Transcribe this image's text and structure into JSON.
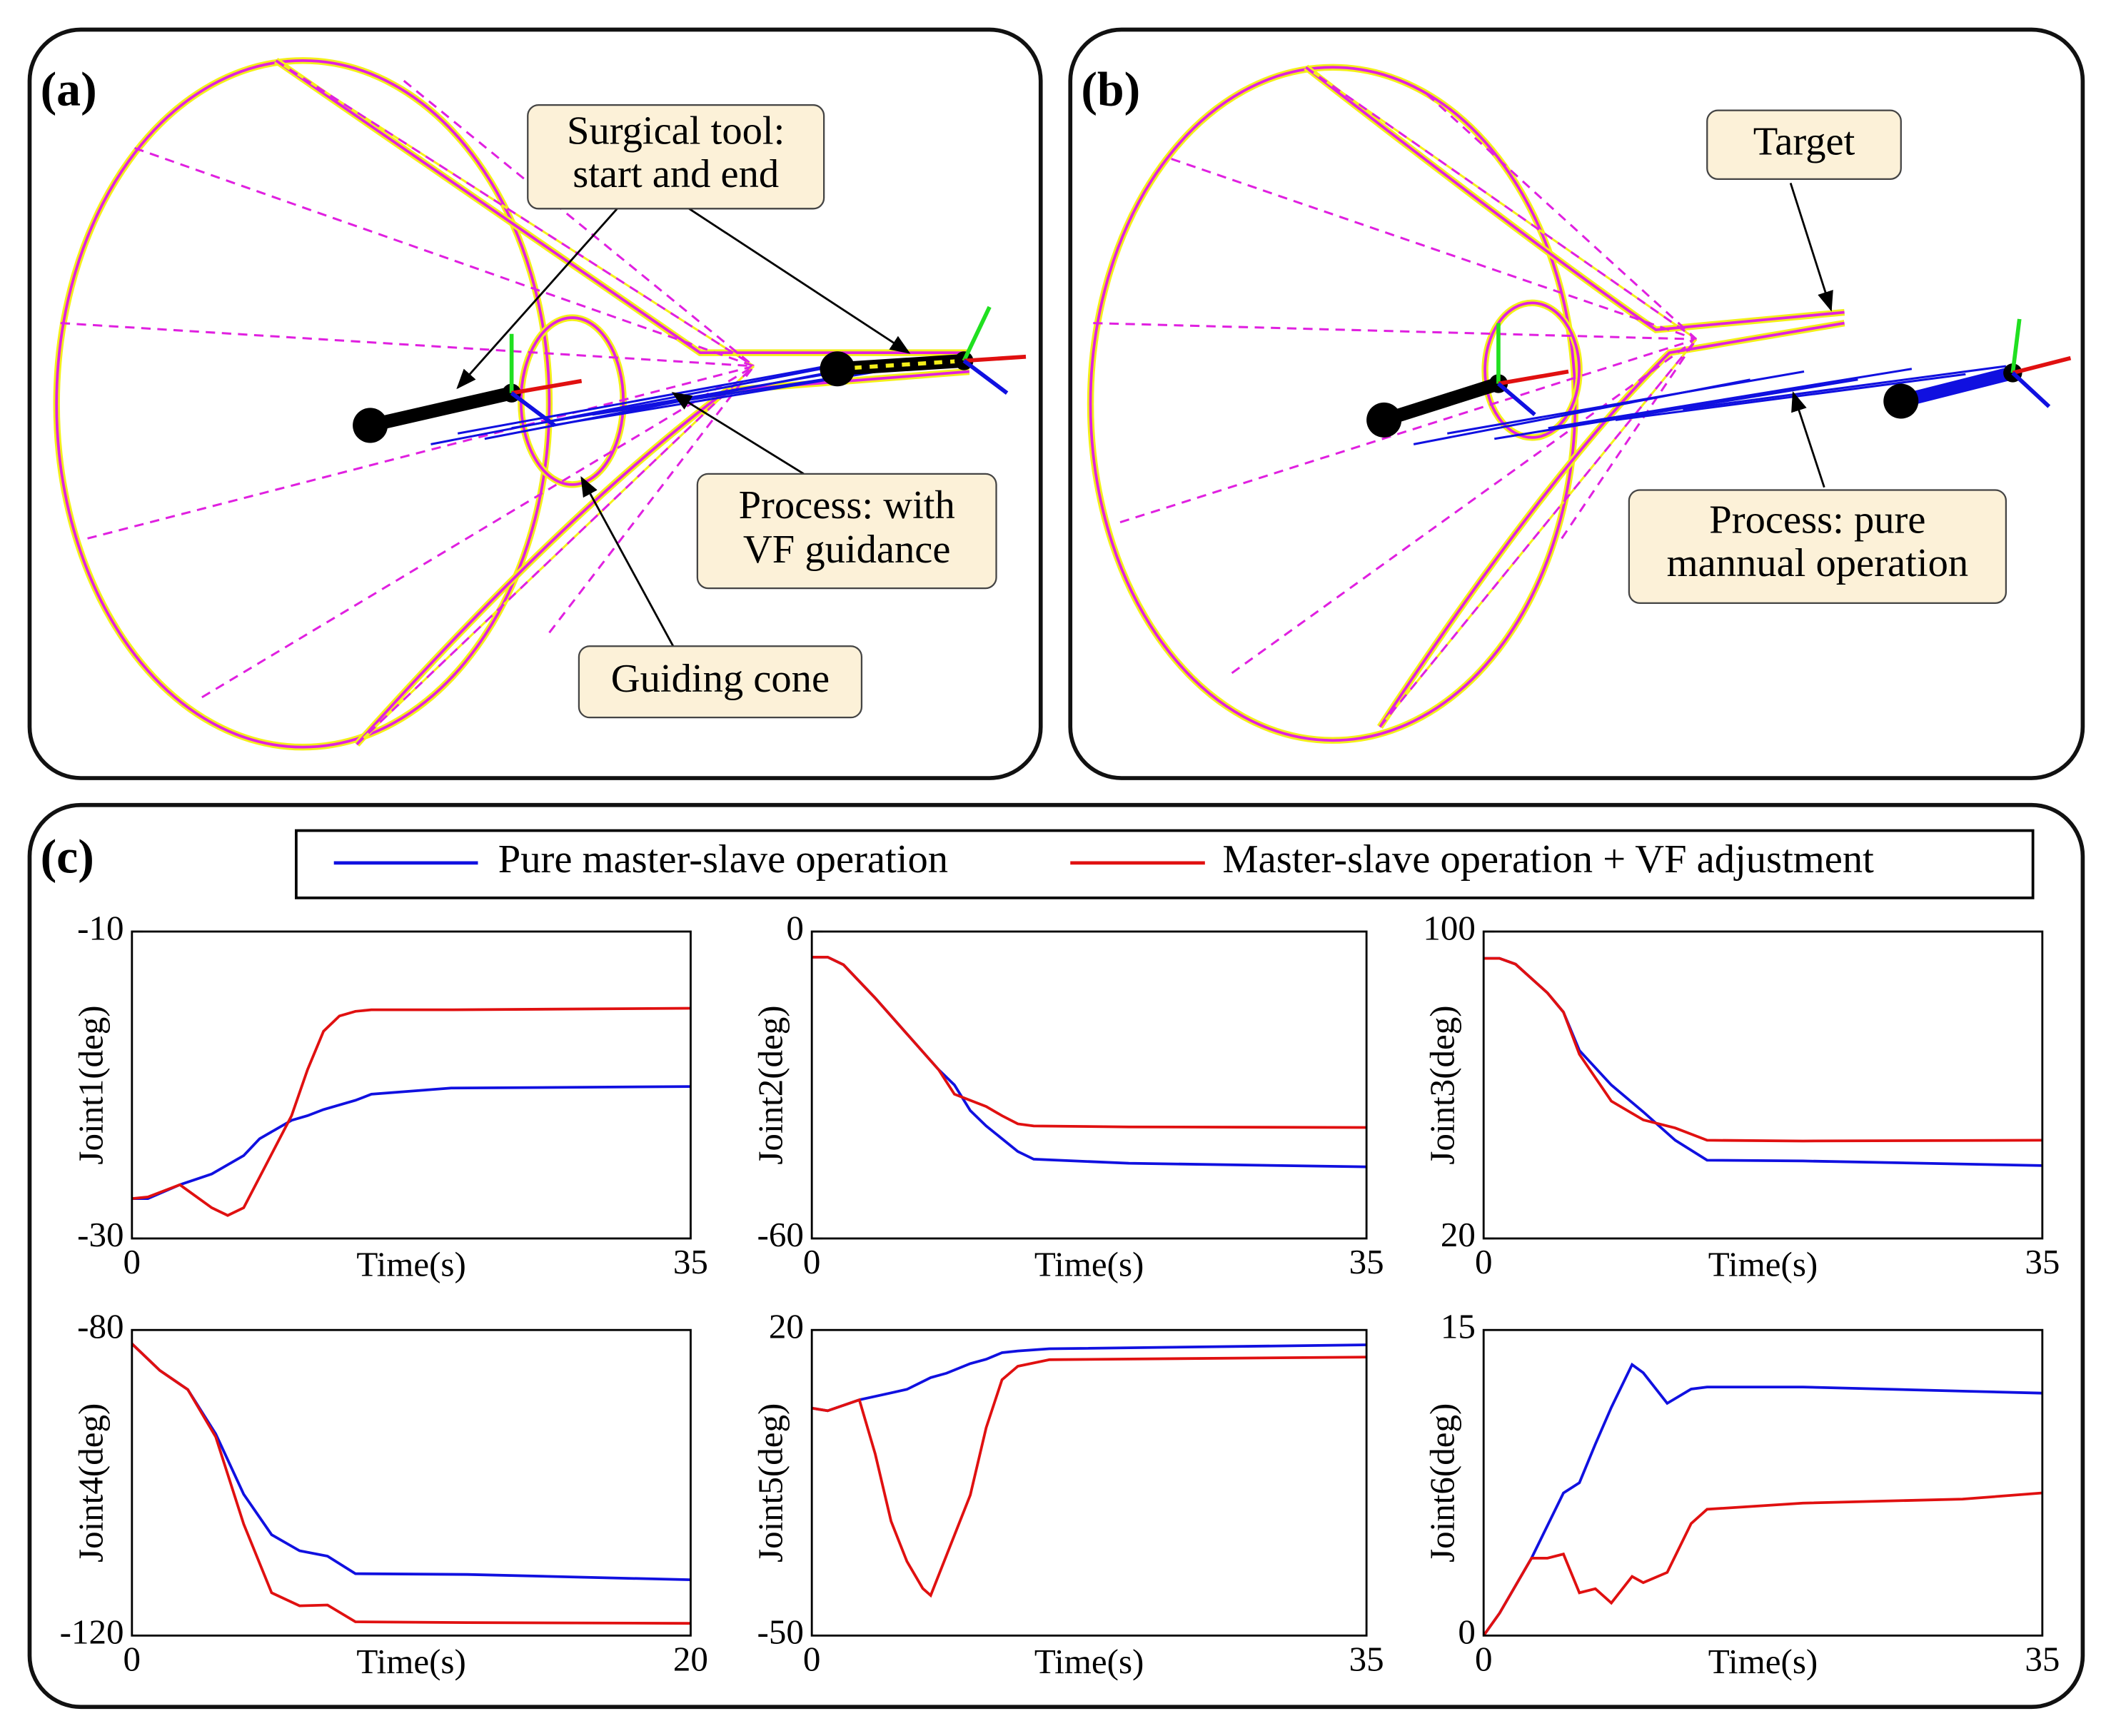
{
  "panels": {
    "a": {
      "label": "(a)",
      "tool": [
        "Surgical tool:",
        "start and end"
      ],
      "process": [
        "Process: with",
        "VF guidance"
      ],
      "cone": "Guiding cone"
    },
    "b": {
      "label": "(b)",
      "target": "Target",
      "process": [
        "Process: pure",
        "mannual operation"
      ]
    },
    "c": {
      "label": "(c)"
    }
  },
  "legend": [
    {
      "name": "Pure master-slave operation",
      "color": "#1010e0"
    },
    {
      "name": "Master-slave operation + VF adjustment",
      "color": "#e01010"
    }
  ],
  "chart_data": [
    {
      "type": "line",
      "x_label": "Time(s)",
      "y_label": "Joint1(deg)",
      "xlim": [
        0,
        35
      ],
      "xticks": [
        0,
        35
      ],
      "ylim": [
        -30,
        -10
      ],
      "yticks": [
        -30,
        -10
      ],
      "x": [
        0,
        1,
        3,
        5,
        6,
        7,
        8,
        9,
        10,
        11,
        12,
        13,
        14,
        15,
        20,
        35
      ],
      "series": [
        {
          "color": "#1010e0",
          "values": [
            -27.4,
            -27.4,
            -26.5,
            -25.8,
            -25.2,
            -24.6,
            -23.5,
            -22.9,
            -22.3,
            -22,
            -21.6,
            -21.3,
            -21,
            -20.6,
            -20.2,
            -20.1
          ]
        },
        {
          "color": "#e01010",
          "values": [
            -27.4,
            -27.3,
            -26.5,
            -28,
            -28.5,
            -28,
            -26,
            -24,
            -22,
            -19,
            -16.5,
            -15.5,
            -15.2,
            -15.1,
            -15.1,
            -15
          ]
        }
      ]
    },
    {
      "type": "line",
      "x_label": "Time(s)",
      "y_label": "Joint2(deg)",
      "xlim": [
        0,
        35
      ],
      "xticks": [
        0,
        35
      ],
      "ylim": [
        -60,
        0
      ],
      "yticks": [
        -60,
        0
      ],
      "x": [
        0,
        1,
        2,
        4,
        6,
        8,
        9,
        10,
        11,
        12,
        13,
        14,
        20,
        35
      ],
      "series": [
        {
          "color": "#1010e0",
          "values": [
            -5,
            -5,
            -6.5,
            -13,
            -20,
            -27,
            -30,
            -35,
            -38,
            -40.5,
            -43,
            -44.5,
            -45.3,
            -46
          ]
        },
        {
          "color": "#e01010",
          "values": [
            -5,
            -5,
            -6.5,
            -13,
            -20,
            -27,
            -31.8,
            -33,
            -34.2,
            -36,
            -37.6,
            -38,
            -38.2,
            -38.3
          ]
        }
      ]
    },
    {
      "type": "line",
      "x_label": "Time(s)",
      "y_label": "Joint3(deg)",
      "xlim": [
        0,
        35
      ],
      "xticks": [
        0,
        35
      ],
      "ylim": [
        20,
        100
      ],
      "yticks": [
        20,
        100
      ],
      "x": [
        0,
        1,
        2,
        4,
        5,
        6,
        8,
        10,
        12,
        14,
        20,
        35
      ],
      "series": [
        {
          "color": "#1010e0",
          "values": [
            93,
            93,
            91.5,
            84,
            79,
            69,
            60,
            53,
            45.6,
            40.4,
            40.2,
            39
          ]
        },
        {
          "color": "#e01010",
          "values": [
            93,
            93,
            91.5,
            84,
            79,
            68,
            55.8,
            50.9,
            48.8,
            45.6,
            45.4,
            45.6
          ]
        }
      ]
    },
    {
      "type": "line",
      "x_label": "Time(s)",
      "y_label": "Joint4(deg)",
      "xlim": [
        0,
        20
      ],
      "xticks": [
        0,
        20
      ],
      "ylim": [
        -120,
        -80
      ],
      "yticks": [
        -120,
        -80
      ],
      "x": [
        0,
        1,
        2,
        3,
        4,
        5,
        6,
        7,
        8,
        12,
        20
      ],
      "series": [
        {
          "color": "#1010e0",
          "values": [
            -81.8,
            -85.3,
            -87.8,
            -93.6,
            -101.5,
            -106.8,
            -108.9,
            -109.6,
            -111.9,
            -112,
            -112.7
          ]
        },
        {
          "color": "#e01010",
          "values": [
            -81.8,
            -85.3,
            -87.8,
            -94,
            -105.4,
            -114.4,
            -116.1,
            -116,
            -118.2,
            -118.3,
            -118.4
          ]
        }
      ]
    },
    {
      "type": "line",
      "x_label": "Time(s)",
      "y_label": "Joint5(deg)",
      "xlim": [
        0,
        35
      ],
      "xticks": [
        0,
        35
      ],
      "ylim": [
        -50,
        20
      ],
      "yticks": [
        -50,
        20
      ],
      "x": [
        0,
        1,
        3,
        4,
        5,
        6,
        7,
        7.5,
        8.5,
        10,
        11,
        12,
        13,
        15,
        35
      ],
      "series": [
        {
          "color": "#1010e0",
          "values": [
            2.1,
            1.5,
            4,
            4.8,
            5.6,
            6.4,
            8.2,
            9.1,
            10.1,
            12.3,
            13.3,
            14.8,
            15.2,
            15.7,
            16.6
          ]
        },
        {
          "color": "#e01010",
          "values": [
            2.1,
            1.5,
            4,
            -8.4,
            -23.8,
            -33,
            -39.2,
            -40.8,
            -31.6,
            -17.8,
            -2.4,
            8.6,
            11.7,
            13.2,
            13.8
          ]
        }
      ]
    },
    {
      "type": "line",
      "x_label": "Time(s)",
      "y_label": "Joint6(deg)",
      "xlim": [
        0,
        35
      ],
      "xticks": [
        0,
        35
      ],
      "ylim": [
        0,
        15
      ],
      "yticks": [
        0,
        15
      ],
      "x": [
        0,
        1,
        3,
        4,
        5,
        6,
        7,
        8,
        9.3,
        10,
        11.5,
        13,
        14,
        20,
        30,
        35
      ],
      "series": [
        {
          "color": "#1010e0",
          "values": [
            0,
            1.1,
            3.8,
            5.4,
            7,
            7.5,
            9.4,
            11.2,
            13.3,
            12.9,
            11.4,
            12.1,
            12.2,
            12.2,
            12,
            11.9
          ]
        },
        {
          "color": "#e01010",
          "values": [
            0,
            1.1,
            3.8,
            3.8,
            4,
            2.1,
            2.3,
            1.6,
            2.9,
            2.6,
            3.1,
            5.5,
            6.2,
            6.5,
            6.7,
            7
          ]
        }
      ]
    }
  ]
}
